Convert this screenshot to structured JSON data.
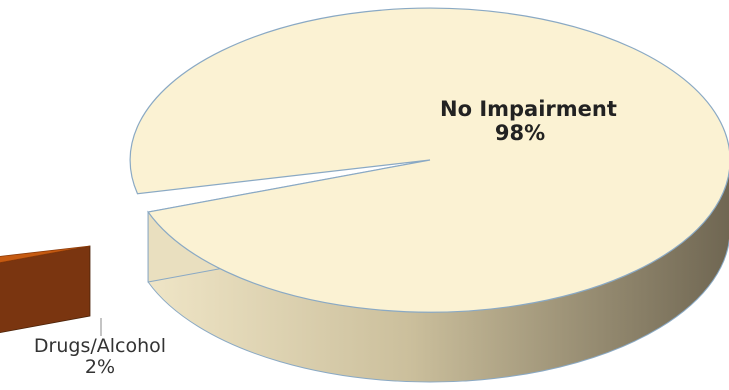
{
  "chart_data": {
    "type": "pie",
    "style": "3d-exploded",
    "slices": [
      {
        "label": "No Impairment",
        "percent_text": "98%",
        "value": 98,
        "color": "#FBF2D3"
      },
      {
        "label": "Drugs/Alcohol",
        "percent_text": "2%",
        "value": 2,
        "color": "#C55A11",
        "exploded": true
      }
    ],
    "title": "",
    "legend": "none"
  }
}
